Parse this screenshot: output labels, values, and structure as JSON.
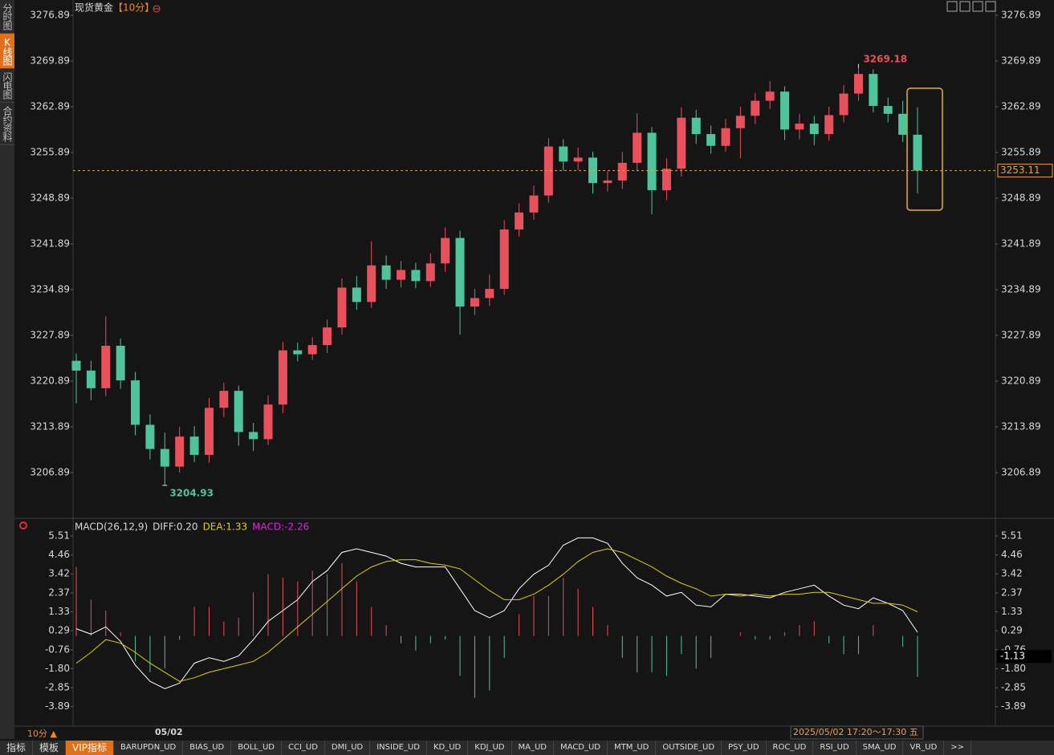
{
  "sidebar": [
    "分时图",
    "K线图",
    "闪电图",
    "合约资料"
  ],
  "chart_data": [
    {
      "type": "candlestick",
      "title": "现货黄金",
      "period": "【10分】",
      "open": [
        3224.0,
        3222.5,
        3219.8,
        3226.3,
        3221.0,
        3214.2,
        3210.5,
        3207.8,
        3212.4,
        3209.6,
        3216.8,
        3219.4,
        3213.1,
        3212.0,
        3217.3,
        3225.6,
        3225.0,
        3226.4,
        3229.1,
        3235.2,
        3233.0,
        3238.6,
        3236.4,
        3237.9,
        3236.2,
        3238.9,
        3242.8,
        3232.3,
        3233.6,
        3235.0,
        3244.1,
        3246.7,
        3249.3,
        3256.8,
        3254.5,
        3255.1,
        3251.2,
        3251.6,
        3254.3,
        3258.9,
        3250.1,
        3253.4,
        3261.2,
        3258.7,
        3256.9,
        3259.6,
        3261.5,
        3263.8,
        3265.2,
        3259.4,
        3260.3,
        3258.7,
        3261.6,
        3264.9,
        3267.9,
        3263.0,
        3261.8,
        3258.6
      ],
      "high": [
        3225.1,
        3224.0,
        3230.8,
        3227.4,
        3222.3,
        3215.8,
        3213.0,
        3213.9,
        3214.0,
        3218.3,
        3220.6,
        3220.2,
        3214.5,
        3218.7,
        3226.9,
        3226.8,
        3227.6,
        3230.3,
        3236.6,
        3237.0,
        3242.3,
        3240.1,
        3239.3,
        3239.0,
        3240.4,
        3244.4,
        3243.9,
        3235.0,
        3237.2,
        3245.5,
        3248.1,
        3250.8,
        3258.1,
        3257.9,
        3256.6,
        3256.0,
        3253.0,
        3256.0,
        3261.9,
        3259.8,
        3255.0,
        3262.8,
        3262.4,
        3260.0,
        3261.0,
        3262.9,
        3265.0,
        3266.8,
        3266.0,
        3261.8,
        3261.5,
        3262.9,
        3266.2,
        3269.18,
        3268.6,
        3264.3,
        3263.8,
        3262.8
      ],
      "low": [
        3217.5,
        3218.0,
        3218.6,
        3219.7,
        3212.6,
        3208.9,
        3204.93,
        3206.9,
        3208.5,
        3208.4,
        3215.4,
        3211.0,
        3210.2,
        3211.1,
        3216.0,
        3223.9,
        3224.1,
        3225.2,
        3228.0,
        3231.8,
        3232.1,
        3235.0,
        3235.2,
        3235.1,
        3235.3,
        3237.6,
        3228.0,
        3231.0,
        3232.4,
        3234.1,
        3243.0,
        3245.6,
        3248.2,
        3253.1,
        3253.2,
        3249.6,
        3249.9,
        3250.3,
        3253.0,
        3246.4,
        3248.6,
        3252.2,
        3257.2,
        3255.7,
        3256.0,
        3255.0,
        3260.2,
        3262.5,
        3257.8,
        3257.9,
        3257.0,
        3257.7,
        3260.5,
        3263.8,
        3262.0,
        3260.5,
        3257.5,
        3249.6
      ],
      "close": [
        3222.5,
        3219.8,
        3226.3,
        3221.0,
        3214.2,
        3210.5,
        3207.8,
        3212.4,
        3209.6,
        3216.8,
        3219.4,
        3213.1,
        3212.0,
        3217.3,
        3225.6,
        3225.0,
        3226.4,
        3229.1,
        3235.2,
        3233.0,
        3238.6,
        3236.4,
        3237.9,
        3236.2,
        3238.9,
        3242.8,
        3232.3,
        3233.6,
        3235.0,
        3244.1,
        3246.7,
        3249.3,
        3256.8,
        3254.5,
        3255.1,
        3251.2,
        3251.6,
        3254.3,
        3258.9,
        3250.1,
        3253.4,
        3261.2,
        3258.7,
        3256.9,
        3259.6,
        3261.5,
        3263.8,
        3265.2,
        3259.4,
        3260.3,
        3258.7,
        3261.6,
        3264.9,
        3267.9,
        3263.0,
        3261.8,
        3258.6,
        3253.11
      ],
      "ylim": [
        3200,
        3279
      ],
      "yticks": [
        3206.89,
        3213.89,
        3220.89,
        3227.89,
        3234.89,
        3241.89,
        3248.89,
        3255.89,
        3262.89,
        3269.89,
        3276.89
      ],
      "up_color": "#e8505b",
      "down_color": "#4fc49a",
      "last_price_color": "#f0a030"
    },
    {
      "type": "macd",
      "legend": [
        {
          "text": "MACD(26,12,9)",
          "color": "#d8d8d8"
        },
        {
          "text": "DIFF:0.20",
          "color": "#d8d8d8"
        },
        {
          "text": "DEA:1.33",
          "color": "#e0d000"
        },
        {
          "text": "MACD:-2.26",
          "color": "#e020e0"
        }
      ],
      "series": [
        {
          "color": "#ffffff",
          "values": [
            0.4,
            0.1,
            0.5,
            -0.3,
            -1.6,
            -2.5,
            -2.9,
            -2.6,
            -1.5,
            -1.2,
            -1.4,
            -1.1,
            -0.2,
            0.8,
            1.4,
            2.0,
            3.0,
            3.6,
            4.6,
            4.8,
            4.6,
            4.4,
            4.0,
            3.8,
            3.8,
            3.8,
            2.6,
            1.4,
            1.0,
            1.4,
            2.6,
            3.4,
            3.9,
            5.0,
            5.4,
            5.4,
            5.1,
            4.0,
            3.2,
            2.8,
            2.2,
            2.4,
            1.7,
            1.6,
            2.3,
            2.3,
            2.2,
            2.1,
            2.4,
            2.6,
            2.8,
            2.2,
            1.7,
            1.5,
            2.1,
            1.8,
            1.4,
            0.2
          ]
        },
        {
          "color": "#e0d000",
          "values": [
            -1.5,
            -0.9,
            -0.2,
            -0.4,
            -0.9,
            -1.5,
            -2.0,
            -2.5,
            -2.3,
            -2.0,
            -1.8,
            -1.6,
            -1.4,
            -0.9,
            -0.2,
            0.5,
            1.2,
            1.9,
            2.6,
            3.3,
            3.8,
            4.1,
            4.2,
            4.2,
            4.0,
            3.9,
            3.7,
            3.1,
            2.5,
            2.0,
            2.0,
            2.3,
            2.8,
            3.4,
            4.1,
            4.6,
            4.8,
            4.6,
            4.2,
            3.8,
            3.3,
            2.9,
            2.6,
            2.2,
            2.3,
            2.2,
            2.3,
            2.2,
            2.3,
            2.3,
            2.4,
            2.4,
            2.2,
            2.0,
            1.8,
            1.8,
            1.7,
            1.33
          ]
        },
        {
          "up_color": "#e8505b",
          "down_color": "#4fc49a",
          "values": [
            3.8,
            2.0,
            1.4,
            0.2,
            -1.4,
            -2.0,
            -1.8,
            -0.2,
            1.6,
            1.6,
            0.8,
            1.0,
            2.4,
            3.4,
            3.2,
            3.0,
            3.6,
            3.4,
            4.0,
            3.0,
            1.6,
            0.6,
            -0.4,
            -0.8,
            -0.4,
            -0.2,
            -2.2,
            -3.4,
            -3.0,
            -1.2,
            1.2,
            2.2,
            2.2,
            3.2,
            2.6,
            1.6,
            0.6,
            -1.2,
            -2.0,
            -2.0,
            -2.2,
            -1.0,
            -1.8,
            -1.2,
            0.0,
            0.2,
            -0.2,
            -0.2,
            0.2,
            0.6,
            0.8,
            -0.4,
            -1.0,
            -1.0,
            0.6,
            0.0,
            -0.6,
            -2.26
          ]
        }
      ],
      "ylim": [
        -5.0,
        6.4
      ],
      "yticks": [
        -3.89,
        -2.85,
        {
          "value": -1.8,
          "label": "-1.80"
        },
        -0.76,
        0.29,
        1.33,
        2.37,
        3.42,
        4.46,
        5.51
      ],
      "last_value_label": -1.13
    }
  ],
  "footer": {
    "period": "10分 ▲",
    "date_label": "05/02",
    "time_range": "2025/05/02 17:20～17:30 五"
  },
  "tabs": [
    "指标",
    "模板",
    "VIP指标",
    "BARUPDN_UD",
    "BIAS_UD",
    "BOLL_UD",
    "CCI_UD",
    "DMI_UD",
    "INSIDE_UD",
    "KD_UD",
    "KDJ_UD",
    "MA_UD",
    "MACD_UD",
    "MTM_UD",
    "OUTSIDE_UD",
    "PSY_UD",
    "ROC_UD",
    "RSI_UD",
    "SMA_UD",
    "VR_UD",
    ">>"
  ]
}
